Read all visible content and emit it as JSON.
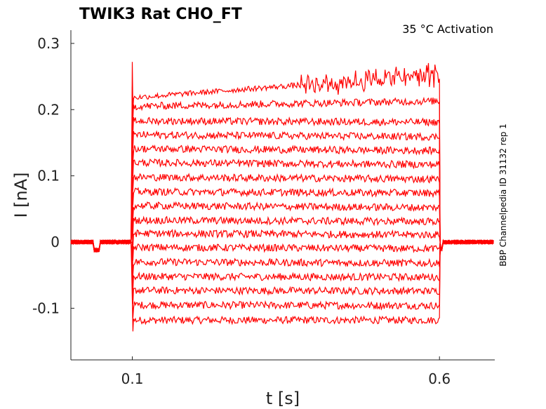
{
  "chart_data": {
    "type": "line",
    "title": "TWIK3  Rat  CHO_FT",
    "annotation": "35 °C  Activation",
    "side_text": "BBP Channelpedia ID 31132 rep 1",
    "xlabel": "t [s]",
    "ylabel": "I [nA]",
    "xlim": [
      0.0,
      0.69
    ],
    "ylim": [
      -0.178,
      0.32
    ],
    "x_ticks": [
      0.1,
      0.6
    ],
    "x_tick_labels": [
      "0.1",
      "0.6"
    ],
    "y_ticks": [
      -0.1,
      0,
      0.1,
      0.2,
      0.3
    ],
    "y_tick_labels": [
      "-0.1",
      "0",
      "0.1",
      "0.2",
      "0.3"
    ],
    "grid": false,
    "line_color": "#ff0000",
    "step_start": 0.1,
    "step_end": 0.6,
    "step_levels_start": [
      -0.118,
      -0.095,
      -0.073,
      -0.052,
      -0.03,
      -0.008,
      0.013,
      0.033,
      0.055,
      0.076,
      0.098,
      0.12,
      0.141,
      0.162,
      0.183,
      0.205,
      0.218
    ],
    "step_levels_end": [
      -0.118,
      -0.096,
      -0.074,
      -0.053,
      -0.032,
      -0.01,
      0.011,
      0.031,
      0.052,
      0.074,
      0.095,
      0.117,
      0.138,
      0.159,
      0.181,
      0.213,
      0.253
    ],
    "onset_peak": 0.272,
    "onset_trough": -0.135
  }
}
